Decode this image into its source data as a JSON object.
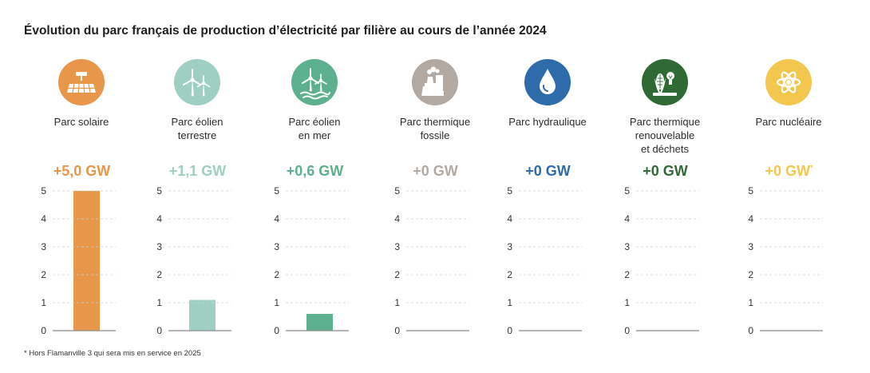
{
  "title": "Évolution du parc français de production d’électricité par filière au cours de l’année 2024",
  "footnote": "* Hors Flamanville 3 qui sera mis en service en 2025",
  "colors": {
    "solaire": "#E8964A",
    "eolien_terrestre": "#9FCFC2",
    "eolien_mer": "#5DB08F",
    "thermique_fossile": "#B3A9A3",
    "hydraulique": "#2E6BAA",
    "thermique_renouvelable": "#2F6A34",
    "nucleaire": "#F3C64E"
  },
  "chart_data": [
    {
      "type": "bar",
      "title": "Parc solaire",
      "value_label": "+5,0 GW",
      "value_suffix": "",
      "unit": "GW",
      "categories": [
        "Parc solaire"
      ],
      "values": [
        5.0
      ],
      "ylim": [
        0,
        5
      ],
      "yticks": [
        "0",
        "1",
        "2",
        "3",
        "4",
        "5"
      ],
      "grid": true,
      "color": "#E8964A",
      "icon": "solar-panel-icon"
    },
    {
      "type": "bar",
      "title": "Parc éolien terrestre",
      "value_label": "+1,1 GW",
      "value_suffix": "",
      "unit": "GW",
      "categories": [
        "Parc éolien terrestre"
      ],
      "values": [
        1.1
      ],
      "ylim": [
        0,
        5
      ],
      "yticks": [
        "0",
        "1",
        "2",
        "3",
        "4",
        "5"
      ],
      "grid": true,
      "color": "#9FCFC2",
      "icon": "onshore-wind-turbine-icon"
    },
    {
      "type": "bar",
      "title": "Parc éolien en mer",
      "value_label": "+0,6 GW",
      "value_suffix": "",
      "unit": "GW",
      "categories": [
        "Parc éolien en mer"
      ],
      "values": [
        0.6
      ],
      "ylim": [
        0,
        5
      ],
      "yticks": [
        "0",
        "1",
        "2",
        "3",
        "4",
        "5"
      ],
      "grid": true,
      "color": "#5DB08F",
      "icon": "offshore-wind-turbine-icon"
    },
    {
      "type": "bar",
      "title": "Parc thermique fossile",
      "value_label": "+0 GW",
      "value_suffix": "",
      "unit": "GW",
      "categories": [
        "Parc thermique fossile"
      ],
      "values": [
        0
      ],
      "ylim": [
        0,
        5
      ],
      "yticks": [
        "0",
        "1",
        "2",
        "3",
        "4",
        "5"
      ],
      "grid": true,
      "color": "#B3A9A3",
      "icon": "fossil-power-plant-icon"
    },
    {
      "type": "bar",
      "title": "Parc hydraulique",
      "value_label": "+0 GW",
      "value_suffix": "",
      "unit": "GW",
      "categories": [
        "Parc hydraulique"
      ],
      "values": [
        0
      ],
      "ylim": [
        0,
        5
      ],
      "yticks": [
        "0",
        "1",
        "2",
        "3",
        "4",
        "5"
      ],
      "grid": true,
      "color": "#2E6BAA",
      "icon": "water-drop-icon"
    },
    {
      "type": "bar",
      "title": "Parc thermique renouvelable et déchets",
      "value_label": "+0 GW",
      "value_suffix": "",
      "unit": "GW",
      "categories": [
        "Parc thermique renouvelable et déchets"
      ],
      "values": [
        0
      ],
      "ylim": [
        0,
        5
      ],
      "yticks": [
        "0",
        "1",
        "2",
        "3",
        "4",
        "5"
      ],
      "grid": true,
      "color": "#2F6A34",
      "icon": "biomass-waste-icon"
    },
    {
      "type": "bar",
      "title": "Parc nucléaire",
      "value_label": "+0 GW",
      "value_suffix": "*",
      "unit": "GW",
      "categories": [
        "Parc nucléaire"
      ],
      "values": [
        0
      ],
      "ylim": [
        0,
        5
      ],
      "yticks": [
        "0",
        "1",
        "2",
        "3",
        "4",
        "5"
      ],
      "grid": true,
      "color": "#F3C64E",
      "icon": "atom-icon"
    }
  ],
  "panel_label_lines": [
    [
      "Parc solaire"
    ],
    [
      "Parc éolien",
      "terrestre"
    ],
    [
      "Parc éolien",
      "en mer"
    ],
    [
      "Parc thermique",
      "fossile"
    ],
    [
      "Parc hydraulique"
    ],
    [
      "Parc thermique",
      "renouvelable",
      "et déchets"
    ],
    [
      "Parc nucléaire"
    ]
  ]
}
